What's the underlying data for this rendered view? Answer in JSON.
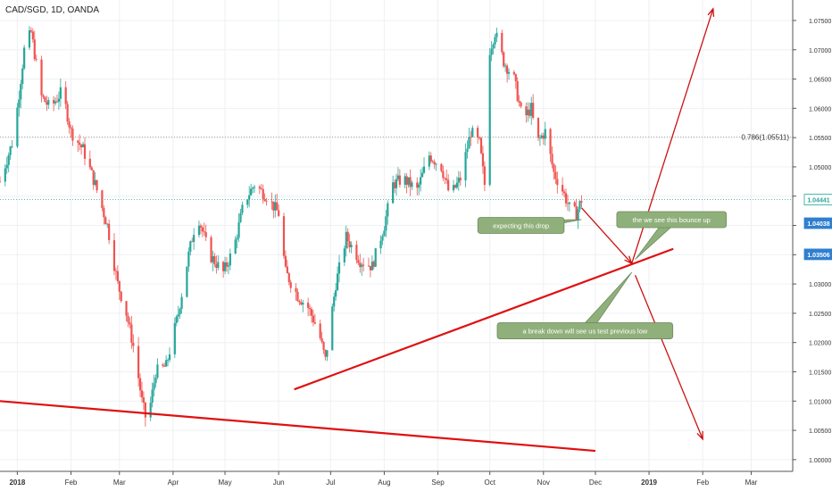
{
  "header": {
    "symbol_title": "CAD/SGD, 1D, OANDA"
  },
  "colors": {
    "up": "#26a69a",
    "down": "#ef5350",
    "trendline": "#e01010",
    "arrow": "#cc1111",
    "callout_fill": "#8fb07a",
    "callout_border": "#6f8a5c",
    "callout_text": "#ffffff",
    "price_tag": "#2f7fd0",
    "last_price_line": "#26a69a",
    "fib_line": "#9a9a9a",
    "grid": "#eef0f3",
    "axis_text": "#333333"
  },
  "chart_data": {
    "type": "candlestick",
    "title": "CAD/SGD, 1D, OANDA",
    "xlabel": "",
    "ylabel": "",
    "ylim": [
      0.998,
      1.0785
    ],
    "xlim": [
      "2017-12-22",
      "2019-03-25"
    ],
    "y_ticks": [
      "1.07500",
      "1.07000",
      "1.06500",
      "1.06000",
      "1.05500",
      "1.05000",
      "1.04500",
      "1.04000",
      "1.03500",
      "1.03000",
      "1.02500",
      "1.02000",
      "1.01500",
      "1.01000",
      "1.00500",
      "1.00000"
    ],
    "x_ticks": [
      {
        "date": "2018-01-01",
        "label": "2018"
      },
      {
        "date": "2018-02-01",
        "label": "Feb"
      },
      {
        "date": "2018-03-01",
        "label": "Mar"
      },
      {
        "date": "2018-04-01",
        "label": "Apr"
      },
      {
        "date": "2018-05-01",
        "label": "May"
      },
      {
        "date": "2018-06-01",
        "label": "Jun"
      },
      {
        "date": "2018-07-01",
        "label": "Jul"
      },
      {
        "date": "2018-08-01",
        "label": "Aug"
      },
      {
        "date": "2018-09-01",
        "label": "Sep"
      },
      {
        "date": "2018-10-01",
        "label": "Oct"
      },
      {
        "date": "2018-11-01",
        "label": "Nov"
      },
      {
        "date": "2018-12-01",
        "label": "Dec"
      },
      {
        "date": "2019-01-01",
        "label": "2019"
      },
      {
        "date": "2019-02-01",
        "label": "Feb"
      },
      {
        "date": "2019-03-01",
        "label": "Mar"
      }
    ],
    "close_path": [
      {
        "date": "2017-12-22",
        "close": 1.0475
      },
      {
        "date": "2017-12-30",
        "close": 1.055
      },
      {
        "date": "2018-01-05",
        "close": 1.07
      },
      {
        "date": "2018-01-09",
        "close": 1.073
      },
      {
        "date": "2018-01-15",
        "close": 1.062
      },
      {
        "date": "2018-01-20",
        "close": 1.06
      },
      {
        "date": "2018-01-27",
        "close": 1.063
      },
      {
        "date": "2018-02-01",
        "close": 1.056
      },
      {
        "date": "2018-02-08",
        "close": 1.053
      },
      {
        "date": "2018-02-15",
        "close": 1.047
      },
      {
        "date": "2018-02-22",
        "close": 1.04
      },
      {
        "date": "2018-02-28",
        "close": 1.03
      },
      {
        "date": "2018-03-05",
        "close": 1.025
      },
      {
        "date": "2018-03-10",
        "close": 1.018
      },
      {
        "date": "2018-03-14",
        "close": 1.01
      },
      {
        "date": "2018-03-17",
        "close": 1.006
      },
      {
        "date": "2018-03-22",
        "close": 1.015
      },
      {
        "date": "2018-03-28",
        "close": 1.016
      },
      {
        "date": "2018-04-04",
        "close": 1.025
      },
      {
        "date": "2018-04-10",
        "close": 1.035
      },
      {
        "date": "2018-04-15",
        "close": 1.042
      },
      {
        "date": "2018-04-22",
        "close": 1.035
      },
      {
        "date": "2018-04-30",
        "close": 1.032
      },
      {
        "date": "2018-05-06",
        "close": 1.036
      },
      {
        "date": "2018-05-12",
        "close": 1.044
      },
      {
        "date": "2018-05-18",
        "close": 1.047
      },
      {
        "date": "2018-05-25",
        "close": 1.045
      },
      {
        "date": "2018-06-01",
        "close": 1.042
      },
      {
        "date": "2018-06-05",
        "close": 1.032
      },
      {
        "date": "2018-06-12",
        "close": 1.028
      },
      {
        "date": "2018-06-18",
        "close": 1.026
      },
      {
        "date": "2018-06-24",
        "close": 1.022
      },
      {
        "date": "2018-06-28",
        "close": 1.017
      },
      {
        "date": "2018-07-04",
        "close": 1.03
      },
      {
        "date": "2018-07-10",
        "close": 1.038
      },
      {
        "date": "2018-07-18",
        "close": 1.034
      },
      {
        "date": "2018-07-25",
        "close": 1.033
      },
      {
        "date": "2018-08-01",
        "close": 1.04
      },
      {
        "date": "2018-08-06",
        "close": 1.047
      },
      {
        "date": "2018-08-12",
        "close": 1.048
      },
      {
        "date": "2018-08-20",
        "close": 1.046
      },
      {
        "date": "2018-08-27",
        "close": 1.052
      },
      {
        "date": "2018-09-03",
        "close": 1.05
      },
      {
        "date": "2018-09-08",
        "close": 1.045
      },
      {
        "date": "2018-09-14",
        "close": 1.048
      },
      {
        "date": "2018-09-20",
        "close": 1.056
      },
      {
        "date": "2018-09-25",
        "close": 1.054
      },
      {
        "date": "2018-09-28",
        "close": 1.047
      },
      {
        "date": "2018-10-01",
        "close": 1.07
      },
      {
        "date": "2018-10-04",
        "close": 1.073
      },
      {
        "date": "2018-10-09",
        "close": 1.068
      },
      {
        "date": "2018-10-15",
        "close": 1.065
      },
      {
        "date": "2018-10-20",
        "close": 1.058
      },
      {
        "date": "2018-10-25",
        "close": 1.06
      },
      {
        "date": "2018-10-28",
        "close": 1.054
      },
      {
        "date": "2018-11-02",
        "close": 1.056
      },
      {
        "date": "2018-11-07",
        "close": 1.049
      },
      {
        "date": "2018-11-12",
        "close": 1.046
      },
      {
        "date": "2018-11-16",
        "close": 1.043
      },
      {
        "date": "2018-11-20",
        "close": 1.042
      },
      {
        "date": "2018-11-23",
        "close": 1.0444
      }
    ],
    "price_levels": [
      {
        "name": "last_price",
        "value": 1.04441,
        "label": "1.04441"
      },
      {
        "name": "target_price",
        "value": 1.04038,
        "label": "1.04038"
      },
      {
        "name": "trendline_price",
        "value": 1.03506,
        "label": "1.03506"
      }
    ],
    "fib_level": {
      "value": 1.05511,
      "label": "0.786(1.05511)"
    },
    "trendlines": [
      {
        "name": "rising-support",
        "from": {
          "date": "2018-06-10",
          "price": 1.012
        },
        "to": {
          "date": "2019-01-15",
          "price": 1.036
        }
      },
      {
        "name": "falling-support",
        "from": {
          "date": "2017-12-22",
          "price": 1.01
        },
        "to": {
          "date": "2018-12-01",
          "price": 1.0015
        }
      }
    ],
    "arrows": [
      {
        "name": "drop-arrow",
        "from": {
          "date": "2018-11-23",
          "price": 1.043
        },
        "to": {
          "date": "2018-12-22",
          "price": 1.0335
        }
      },
      {
        "name": "bounce-up-arrow",
        "from": {
          "date": "2018-12-22",
          "price": 1.0335
        },
        "to": {
          "date": "2019-02-07",
          "price": 1.077
        }
      },
      {
        "name": "break-down-arrow",
        "from": {
          "date": "2018-12-24",
          "price": 1.0315
        },
        "to": {
          "date": "2019-02-01",
          "price": 1.0035
        }
      }
    ],
    "annotations": [
      {
        "name": "callout-drop",
        "text": "expecting this drop",
        "anchor": {
          "date": "2018-11-23",
          "price": 1.041
        },
        "box": {
          "date": "2018-10-19",
          "price": 1.04
        }
      },
      {
        "name": "callout-bounce",
        "text": "the we see this bounce up",
        "anchor": {
          "date": "2018-12-24",
          "price": 1.0342
        },
        "box": {
          "date": "2019-01-14",
          "price": 1.041
        }
      },
      {
        "name": "callout-breakdown",
        "text": "a break down will see us test previous low",
        "anchor": {
          "date": "2018-12-22",
          "price": 1.032
        },
        "box": {
          "date": "2018-11-25",
          "price": 1.022
        }
      }
    ]
  }
}
